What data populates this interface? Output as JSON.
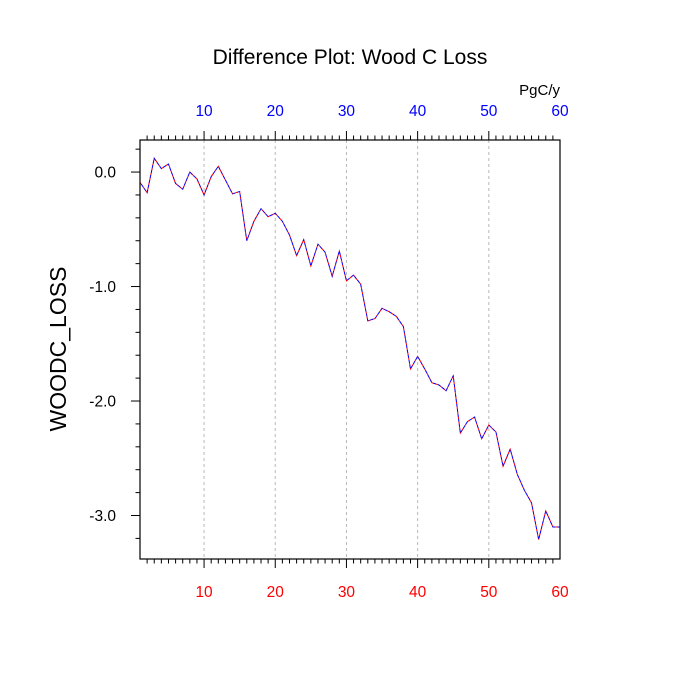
{
  "chart_data": {
    "type": "line",
    "title": "Difference Plot: Wood C Loss",
    "units": "PgC/y",
    "ylabel": "WOODC_LOSS",
    "xlabel": "",
    "xlim": [
      1,
      60
    ],
    "ylim": [
      -3.38,
      0.28
    ],
    "x_ticks": [
      10,
      20,
      30,
      40,
      50,
      60
    ],
    "y_ticks": [
      0.0,
      -1.0,
      -2.0,
      -3.0
    ],
    "y_tick_labels": [
      "0.0",
      "-1.0",
      "-2.0",
      "-3.0"
    ],
    "x_tick_labels_bottom": [
      "10",
      "20",
      "30",
      "40",
      "50",
      "60"
    ],
    "x_tick_labels_top": [
      "10",
      "20",
      "30",
      "40",
      "50",
      "60"
    ],
    "grid": "vertical dashed lines at x ticks",
    "colors": {
      "bottom_ticks": "#ff0000",
      "top_ticks": "#0000ff",
      "line_1": "#ff0000",
      "line_2": "#0000ff",
      "grid": "#b8b8b8"
    },
    "x": [
      1,
      2,
      3,
      4,
      5,
      6,
      7,
      8,
      9,
      10,
      11,
      12,
      13,
      14,
      15,
      16,
      17,
      18,
      19,
      20,
      21,
      22,
      23,
      24,
      25,
      26,
      27,
      28,
      29,
      30,
      31,
      32,
      33,
      34,
      35,
      36,
      37,
      38,
      39,
      40,
      41,
      42,
      43,
      44,
      45,
      46,
      47,
      48,
      49,
      50,
      51,
      52,
      53,
      54,
      55,
      56,
      57,
      58,
      59,
      60
    ],
    "values": [
      -0.09,
      -0.18,
      0.12,
      0.03,
      0.07,
      -0.1,
      -0.15,
      0.0,
      -0.06,
      -0.2,
      -0.04,
      0.05,
      -0.07,
      -0.19,
      -0.17,
      -0.6,
      -0.43,
      -0.32,
      -0.39,
      -0.36,
      -0.43,
      -0.55,
      -0.73,
      -0.59,
      -0.82,
      -0.63,
      -0.7,
      -0.91,
      -0.69,
      -0.95,
      -0.9,
      -0.98,
      -1.3,
      -1.28,
      -1.19,
      -1.22,
      -1.26,
      -1.35,
      -1.72,
      -1.61,
      -1.72,
      -1.84,
      -1.86,
      -1.91,
      -1.78,
      -2.28,
      -2.18,
      -2.14,
      -2.33,
      -2.21,
      -2.27,
      -2.57,
      -2.42,
      -2.64,
      -2.78,
      -2.89,
      -3.21,
      -2.96,
      -3.1,
      -3.1
    ]
  }
}
